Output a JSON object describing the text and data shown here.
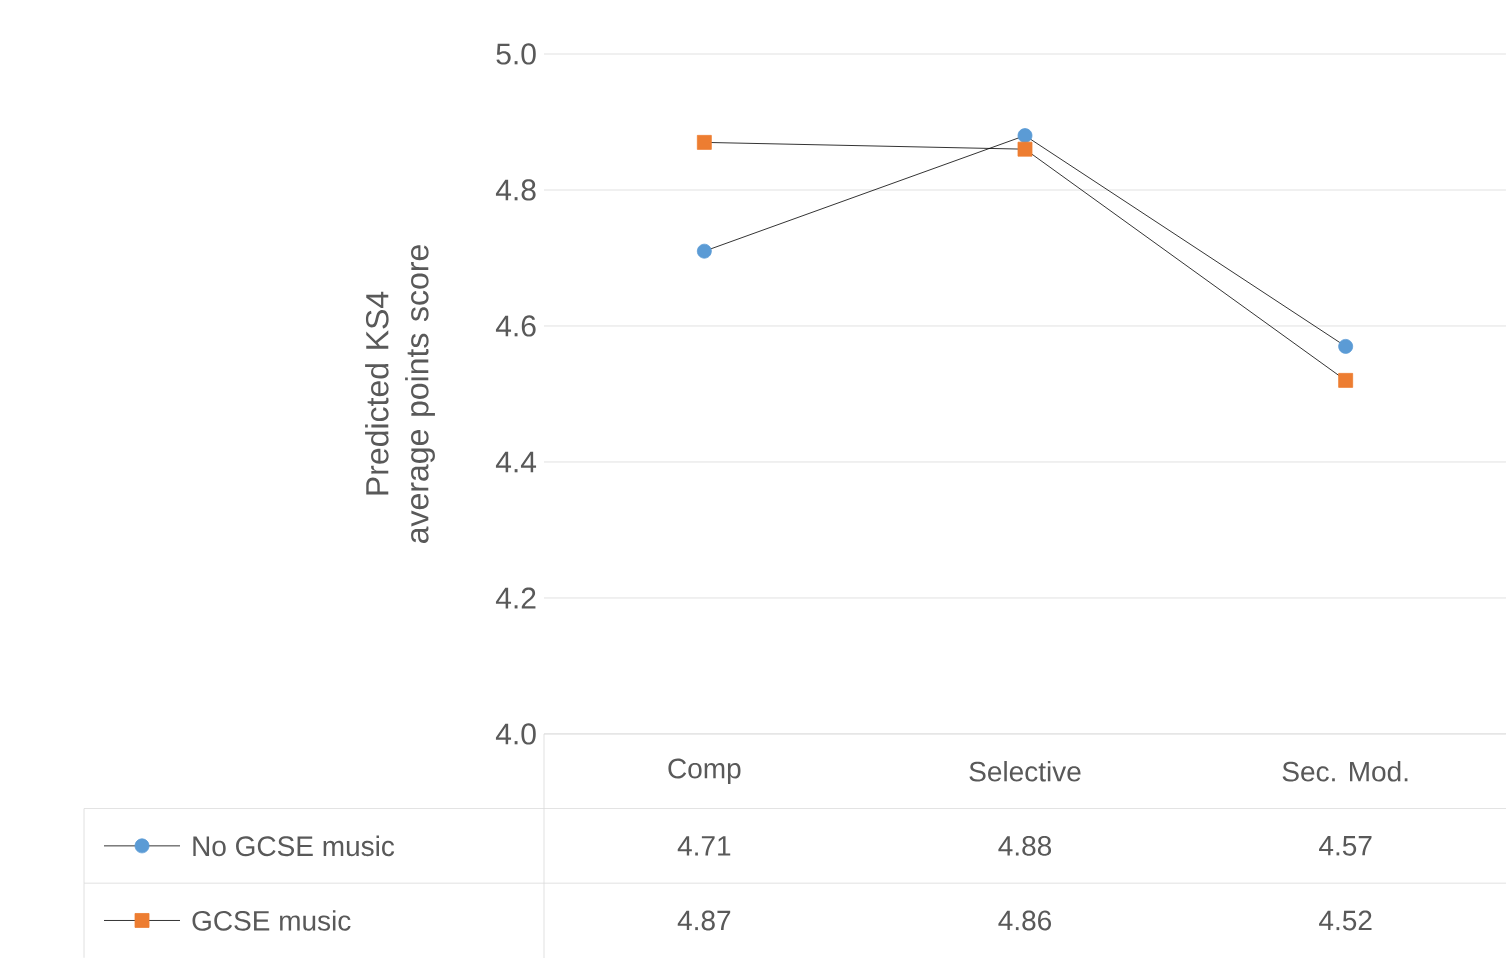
{
  "chart_data": {
    "type": "line",
    "ylabel": "Predicted KS4 average points score",
    "categories": [
      "Comp",
      "Selective",
      "Sec. Mod."
    ],
    "series": [
      {
        "name": "No GCSE music",
        "color": "#5b9bd5",
        "marker": "circle",
        "values": [
          4.71,
          4.88,
          4.57
        ]
      },
      {
        "name": "GCSE music",
        "color": "#ed7d31",
        "marker": "square",
        "values": [
          4.87,
          4.86,
          4.52
        ]
      }
    ],
    "ylim": [
      4.0,
      5.0
    ],
    "yticks": [
      {
        "value": 4.0,
        "label": "4.0"
      },
      {
        "value": 4.2,
        "label": "4.2"
      },
      {
        "value": 4.4,
        "label": "4.4"
      },
      {
        "value": 4.6,
        "label": "4.6"
      },
      {
        "value": 4.8,
        "label": "4.8"
      },
      {
        "value": 5.0,
        "label": "5.0"
      }
    ],
    "grid": "y",
    "legend": "bottom",
    "data_labels": true
  }
}
